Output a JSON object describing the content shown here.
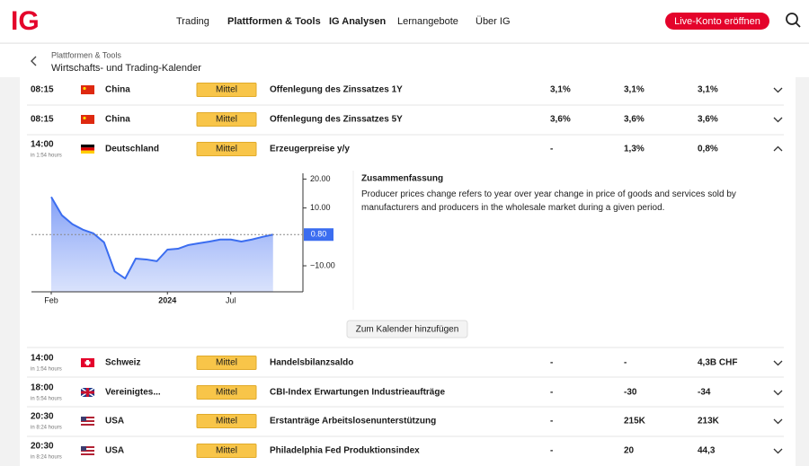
{
  "nav": {
    "logo": "IG",
    "links": [
      "Trading",
      "Plattformen & Tools",
      "IG Analysen",
      "Lernangebote",
      "Über IG"
    ],
    "cta": "Live-Konto eröffnen"
  },
  "breadcrumb": {
    "parent": "Plattformen & Tools",
    "title": "Wirtschafts- und Trading-Kalender"
  },
  "rows": [
    {
      "time": "08:15",
      "country": "China",
      "impact": "Mittel",
      "event": "Offenlegung des Zinssatzes 1Y",
      "actual": "3,1%",
      "forecast": "3,1%",
      "previous": "3,1%"
    },
    {
      "time": "08:15",
      "country": "China",
      "impact": "Mittel",
      "event": "Offenlegung des Zinssatzes 5Y",
      "actual": "3,6%",
      "forecast": "3,6%",
      "previous": "3,6%"
    },
    {
      "time": "14:00",
      "countdown": "in 1:54 hours",
      "country": "Deutschland",
      "impact": "Mittel",
      "event": "Erzeugerpreise y/y",
      "actual": "-",
      "forecast": "1,3%",
      "previous": "0,8%"
    },
    {
      "time": "14:00",
      "countdown": "in 1:54 hours",
      "country": "Schweiz",
      "impact": "Mittel",
      "event": "Handelsbilanzsaldo",
      "actual": "-",
      "forecast": "-",
      "previous": "4,3B CHF"
    },
    {
      "time": "18:00",
      "countdown": "in 5:54 hours",
      "country": "Vereinigtes...",
      "impact": "Mittel",
      "event": "CBI-Index Erwartungen Industrieaufträge",
      "actual": "-",
      "forecast": "-30",
      "previous": "-34"
    },
    {
      "time": "20:30",
      "countdown": "in 8:24 hours",
      "country": "USA",
      "impact": "Mittel",
      "event": "Erstanträge Arbeitslosenunterstützung",
      "actual": "-",
      "forecast": "215K",
      "previous": "213K"
    },
    {
      "time": "20:30",
      "countdown": "in 8:24 hours",
      "country": "USA",
      "impact": "Mittel",
      "event": "Philadelphia Fed Produktionsindex",
      "actual": "-",
      "forecast": "20",
      "previous": "44,3"
    }
  ],
  "detail": {
    "summary_title": "Zusammenfassung",
    "summary_text": "Producer prices change refers to year over year change in price of goods and services sold by manufacturers and producers in the wholesale market during a given period.",
    "button": "Zum Kalender hinzufügen",
    "chart_data": {
      "type": "area",
      "categories": [
        "Feb",
        null,
        null,
        null,
        null,
        null,
        null,
        null,
        null,
        null,
        null,
        "2024",
        null,
        null,
        null,
        null,
        null,
        "Jul",
        null,
        null,
        null,
        null
      ],
      "values": [
        13.8,
        7.5,
        4.4,
        2.5,
        1.2,
        -1.9,
        -11.9,
        -14.4,
        -7.5,
        -7.8,
        -8.4,
        -4.4,
        -4.1,
        -2.8,
        -2.2,
        -1.6,
        -0.9,
        -0.9,
        -1.6,
        -0.9,
        0.0,
        0.8
      ],
      "color": "#3b6df0",
      "ylim": [
        -19,
        22
      ],
      "yticks": [
        {
          "value": 20,
          "label": "20.00"
        },
        {
          "value": 10,
          "label": "10.00"
        },
        {
          "value": -10,
          "label": "−10.00"
        }
      ],
      "marker": {
        "value": 0.8,
        "label": "0.80"
      }
    }
  }
}
